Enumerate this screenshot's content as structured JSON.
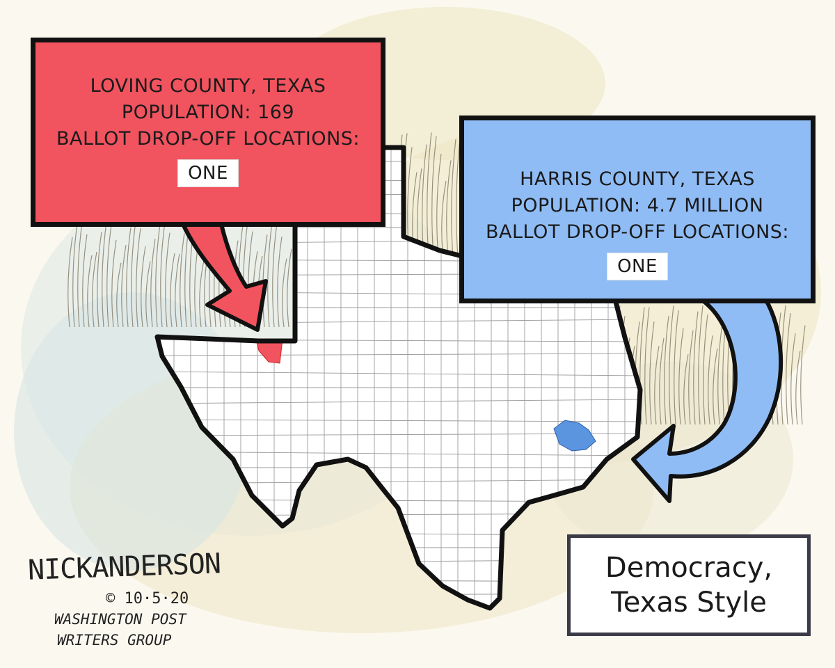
{
  "callouts": {
    "loving": {
      "county": "LOVING COUNTY, TEXAS",
      "population": "POPULATION: 169",
      "locations_label": "BALLOT DROP-OFF LOCATIONS:",
      "locations_value": "ONE",
      "color": "#f1535f"
    },
    "harris": {
      "county": "HARRIS COUNTY, TEXAS",
      "population": "POPULATION: 4.7 MILLION",
      "locations_label": "BALLOT DROP-OFF LOCATIONS:",
      "locations_value": "ONE",
      "color": "#8fbcf5"
    }
  },
  "title": {
    "line1": "Democracy,",
    "line2": "Texas Style"
  },
  "signature": {
    "name": "NickANDERSON",
    "date": "© 10·5·20",
    "publisher_line1": "WASHINGTON POST",
    "publisher_line2": "WRITERS GROUP"
  },
  "colors": {
    "loving_county_fill": "#f1535f",
    "harris_county_fill": "#5b95e0",
    "state_outline": "#111111",
    "background": "#fbf9ef"
  },
  "map_label": "Texas county map"
}
